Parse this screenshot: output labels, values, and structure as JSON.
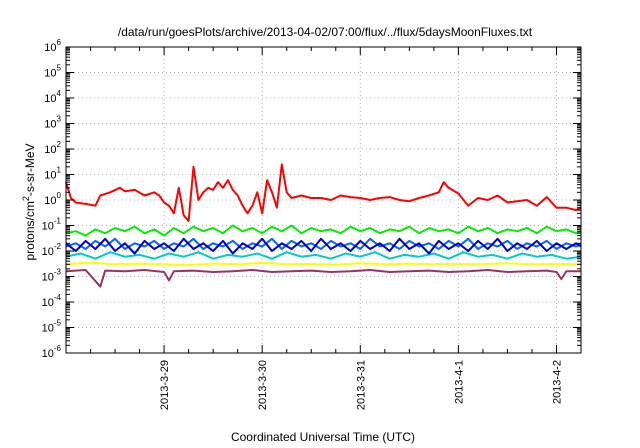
{
  "chart_data": {
    "type": "line",
    "title": "/data/run/goesPlots/archive/2013-04-02/07:00/flux/../flux/5daysMoonFluxes.txt",
    "xlabel": "Coordinated Universal Time (UTC)",
    "ylabel_parts": {
      "pre": "protons/cm",
      "sup": "2",
      "post": "-s-sr-MeV"
    },
    "yscale": "log",
    "ylim": [
      1e-06,
      1000000.0
    ],
    "xlim": [
      0,
      5.25
    ],
    "grid": true,
    "x_unit": "days since 2013-03-28 00:00 UTC",
    "x_ticks": [
      {
        "value": 1,
        "label": "2013-3-29"
      },
      {
        "value": 2,
        "label": "2013-3-30"
      },
      {
        "value": 3,
        "label": "2013-3-31"
      },
      {
        "value": 4,
        "label": "2013-4-1"
      },
      {
        "value": 5,
        "label": "2013-4-2"
      }
    ],
    "y_ticks": [
      {
        "value": 1e-06,
        "base": "10",
        "exp": "-6"
      },
      {
        "value": 1e-05,
        "base": "10",
        "exp": "-5"
      },
      {
        "value": 0.0001,
        "base": "10",
        "exp": "-4"
      },
      {
        "value": 0.001,
        "base": "10",
        "exp": "-3"
      },
      {
        "value": 0.01,
        "base": "10",
        "exp": "-2"
      },
      {
        "value": 0.1,
        "base": "10",
        "exp": "-1"
      },
      {
        "value": 1.0,
        "base": "10",
        "exp": "0"
      },
      {
        "value": 10.0,
        "base": "10",
        "exp": "1"
      },
      {
        "value": 100.0,
        "base": "10",
        "exp": "2"
      },
      {
        "value": 1000.0,
        "base": "10",
        "exp": "3"
      },
      {
        "value": 10000.0,
        "base": "10",
        "exp": "4"
      },
      {
        "value": 100000.0,
        "base": "10",
        "exp": "5"
      },
      {
        "value": 1000000.0,
        "base": "10",
        "exp": "6"
      }
    ],
    "series": [
      {
        "color": "#ff0000",
        "x": [
          0,
          0.05,
          0.1,
          0.2,
          0.3,
          0.35,
          0.45,
          0.55,
          0.6,
          0.7,
          0.8,
          0.9,
          0.95,
          1.0,
          1.05,
          1.1,
          1.15,
          1.2,
          1.25,
          1.3,
          1.35,
          1.4,
          1.45,
          1.5,
          1.55,
          1.6,
          1.65,
          1.7,
          1.75,
          1.8,
          1.85,
          1.9,
          1.95,
          2.0,
          2.05,
          2.1,
          2.15,
          2.2,
          2.25,
          2.3,
          2.4,
          2.5,
          2.6,
          2.7,
          2.8,
          2.9,
          3.0,
          3.1,
          3.2,
          3.3,
          3.4,
          3.5,
          3.6,
          3.7,
          3.8,
          3.85,
          3.9,
          4.0,
          4.1,
          4.2,
          4.3,
          4.4,
          4.5,
          4.6,
          4.7,
          4.8,
          4.9,
          5.0,
          5.1,
          5.2,
          5.25
        ],
        "values": [
          5,
          1.2,
          0.8,
          0.7,
          0.6,
          1.5,
          2,
          3,
          2.2,
          2.5,
          1.5,
          2,
          1.5,
          0.8,
          0.6,
          0.3,
          3,
          0.25,
          0.15,
          20,
          1,
          2,
          3,
          2.5,
          5,
          3,
          6,
          2.5,
          1.5,
          0.6,
          0.3,
          0.6,
          2,
          0.3,
          6,
          2,
          0.5,
          25,
          2,
          1.2,
          1.5,
          1.2,
          1.2,
          1,
          1.5,
          1.3,
          1.2,
          1,
          1.2,
          1.3,
          1,
          0.9,
          1.2,
          1.5,
          2,
          5,
          3,
          1.8,
          0.6,
          1.2,
          1,
          1.5,
          0.8,
          0.9,
          1,
          0.6,
          1.3,
          0.5,
          0.5,
          0.4,
          0.5
        ]
      },
      {
        "color": "#00ee00",
        "x": [
          0,
          0.1,
          0.2,
          0.3,
          0.4,
          0.5,
          0.6,
          0.7,
          0.8,
          0.9,
          1.0,
          1.1,
          1.2,
          1.3,
          1.4,
          1.5,
          1.6,
          1.7,
          1.8,
          1.9,
          2.0,
          2.1,
          2.2,
          2.3,
          2.4,
          2.5,
          2.6,
          2.7,
          2.8,
          2.9,
          3.0,
          3.1,
          3.2,
          3.3,
          3.4,
          3.5,
          3.6,
          3.7,
          3.8,
          3.9,
          4.0,
          4.1,
          4.2,
          4.3,
          4.4,
          4.5,
          4.6,
          4.7,
          4.8,
          4.9,
          5.0,
          5.1,
          5.2,
          5.25
        ],
        "values": [
          0.05,
          0.06,
          0.04,
          0.07,
          0.05,
          0.08,
          0.06,
          0.09,
          0.05,
          0.07,
          0.04,
          0.08,
          0.05,
          0.09,
          0.06,
          0.08,
          0.05,
          0.1,
          0.06,
          0.08,
          0.05,
          0.09,
          0.06,
          0.1,
          0.05,
          0.08,
          0.06,
          0.07,
          0.05,
          0.09,
          0.06,
          0.08,
          0.05,
          0.07,
          0.06,
          0.09,
          0.05,
          0.08,
          0.06,
          0.07,
          0.05,
          0.09,
          0.06,
          0.08,
          0.05,
          0.07,
          0.06,
          0.08,
          0.05,
          0.09,
          0.06,
          0.07,
          0.05,
          0.06
        ]
      },
      {
        "color": "#00cccc",
        "x": [
          0,
          0.15,
          0.3,
          0.45,
          0.6,
          0.75,
          0.9,
          1.05,
          1.2,
          1.35,
          1.5,
          1.65,
          1.8,
          1.95,
          2.1,
          2.25,
          2.4,
          2.55,
          2.7,
          2.85,
          3.0,
          3.15,
          3.3,
          3.45,
          3.6,
          3.75,
          3.9,
          4.05,
          4.2,
          4.35,
          4.5,
          4.65,
          4.8,
          4.95,
          5.1,
          5.25
        ],
        "values": [
          0.006,
          0.008,
          0.005,
          0.009,
          0.006,
          0.007,
          0.005,
          0.008,
          0.006,
          0.009,
          0.005,
          0.007,
          0.006,
          0.008,
          0.005,
          0.009,
          0.006,
          0.007,
          0.005,
          0.008,
          0.006,
          0.009,
          0.005,
          0.007,
          0.006,
          0.008,
          0.005,
          0.009,
          0.006,
          0.007,
          0.005,
          0.008,
          0.006,
          0.007,
          0.005,
          0.006
        ]
      },
      {
        "color": "#0066ff",
        "x": [
          0,
          0.1,
          0.2,
          0.3,
          0.4,
          0.5,
          0.6,
          0.7,
          0.8,
          0.9,
          1.0,
          1.1,
          1.2,
          1.3,
          1.4,
          1.5,
          1.6,
          1.7,
          1.8,
          1.9,
          2.0,
          2.1,
          2.2,
          2.3,
          2.4,
          2.5,
          2.6,
          2.7,
          2.8,
          2.9,
          3.0,
          3.1,
          3.2,
          3.3,
          3.4,
          3.5,
          3.6,
          3.7,
          3.8,
          3.9,
          4.0,
          4.1,
          4.2,
          4.3,
          4.4,
          4.5,
          4.6,
          4.7,
          4.8,
          4.9,
          5.0,
          5.1,
          5.2,
          5.25
        ],
        "values": [
          0.015,
          0.02,
          0.012,
          0.025,
          0.015,
          0.03,
          0.012,
          0.02,
          0.015,
          0.025,
          0.012,
          0.02,
          0.015,
          0.03,
          0.012,
          0.02,
          0.015,
          0.025,
          0.012,
          0.02,
          0.015,
          0.03,
          0.012,
          0.025,
          0.015,
          0.02,
          0.012,
          0.025,
          0.015,
          0.02,
          0.012,
          0.03,
          0.015,
          0.02,
          0.012,
          0.025,
          0.015,
          0.02,
          0.012,
          0.025,
          0.015,
          0.03,
          0.012,
          0.02,
          0.015,
          0.025,
          0.012,
          0.02,
          0.015,
          0.025,
          0.012,
          0.02,
          0.015,
          0.018
        ]
      },
      {
        "color": "#0000cc",
        "x": [
          0,
          0.1,
          0.2,
          0.3,
          0.4,
          0.5,
          0.6,
          0.7,
          0.8,
          0.9,
          1.0,
          1.1,
          1.2,
          1.3,
          1.4,
          1.5,
          1.6,
          1.7,
          1.8,
          1.9,
          2.0,
          2.1,
          2.2,
          2.3,
          2.4,
          2.5,
          2.6,
          2.7,
          2.8,
          2.9,
          3.0,
          3.1,
          3.2,
          3.3,
          3.4,
          3.5,
          3.6,
          3.7,
          3.8,
          3.9,
          4.0,
          4.1,
          4.2,
          4.3,
          4.4,
          4.5,
          4.6,
          4.7,
          4.8,
          4.9,
          5.0,
          5.1,
          5.2,
          5.25
        ],
        "values": [
          0.02,
          0.01,
          0.025,
          0.012,
          0.03,
          0.01,
          0.02,
          0.008,
          0.025,
          0.012,
          0.02,
          0.01,
          0.03,
          0.012,
          0.02,
          0.01,
          0.025,
          0.008,
          0.02,
          0.012,
          0.03,
          0.01,
          0.02,
          0.012,
          0.025,
          0.01,
          0.03,
          0.012,
          0.02,
          0.01,
          0.025,
          0.012,
          0.02,
          0.01,
          0.03,
          0.012,
          0.02,
          0.008,
          0.025,
          0.012,
          0.02,
          0.01,
          0.025,
          0.012,
          0.03,
          0.01,
          0.02,
          0.012,
          0.025,
          0.01,
          0.02,
          0.012,
          0.02,
          0.015
        ]
      },
      {
        "color": "#ffff00",
        "x": [
          0,
          0.25,
          0.5,
          0.75,
          1.0,
          1.25,
          1.5,
          1.75,
          2.0,
          2.25,
          2.5,
          2.75,
          3.0,
          3.25,
          3.5,
          3.75,
          4.0,
          4.25,
          4.5,
          4.75,
          5.0,
          5.25
        ],
        "values": [
          0.003,
          0.0035,
          0.003,
          0.0032,
          0.003,
          0.0028,
          0.0032,
          0.003,
          0.0034,
          0.003,
          0.0031,
          0.0029,
          0.0033,
          0.003,
          0.0032,
          0.003,
          0.0031,
          0.003,
          0.0033,
          0.003,
          0.0031,
          0.003
        ]
      },
      {
        "color": "#993366",
        "x": [
          0,
          0.2,
          0.35,
          0.4,
          0.6,
          0.8,
          1.0,
          1.05,
          1.1,
          1.3,
          1.5,
          1.7,
          1.9,
          2.1,
          2.3,
          2.5,
          2.7,
          2.9,
          3.1,
          3.3,
          3.5,
          3.7,
          3.9,
          4.1,
          4.3,
          4.5,
          4.7,
          4.9,
          5.0,
          5.05,
          5.1,
          5.25
        ],
        "values": [
          0.0016,
          0.0018,
          0.0004,
          0.0017,
          0.0016,
          0.0018,
          0.0015,
          0.0007,
          0.0016,
          0.0017,
          0.0015,
          0.0016,
          0.0018,
          0.0015,
          0.0016,
          0.0017,
          0.0015,
          0.0016,
          0.0018,
          0.0015,
          0.0016,
          0.0017,
          0.0015,
          0.0016,
          0.0018,
          0.0015,
          0.0016,
          0.0017,
          0.0015,
          0.0008,
          0.0016,
          0.0016
        ]
      }
    ]
  }
}
